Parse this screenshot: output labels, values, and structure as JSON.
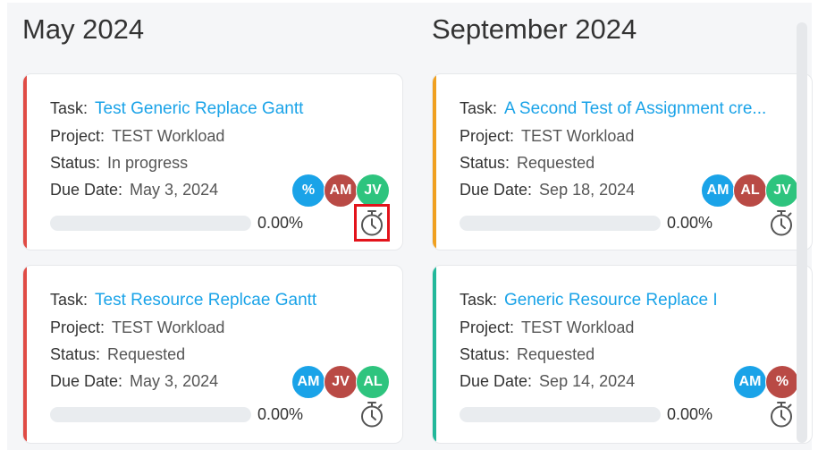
{
  "columns": [
    {
      "title": "May 2024",
      "cards": [
        {
          "accent": "#e04b45",
          "task_label": "Task:",
          "task": "Test Generic Replace Gantt",
          "project_label": "Project:",
          "project": "TEST Workload",
          "status_label": "Status:",
          "status": "In progress",
          "due_label": "Due Date:",
          "due": "May 3, 2024",
          "progress": 0.0,
          "progress_text": "0.00%",
          "avatars": [
            {
              "text": "%",
              "color": "#1aa3e8"
            },
            {
              "text": "AM",
              "color": "#b94a45"
            },
            {
              "text": "JV",
              "color": "#2ec47e"
            }
          ],
          "timer_highlight": true
        },
        {
          "accent": "#e04b45",
          "task_label": "Task:",
          "task": "Test Resource Replcae Gantt",
          "project_label": "Project:",
          "project": "TEST Workload",
          "status_label": "Status:",
          "status": "Requested",
          "due_label": "Due Date:",
          "due": "May 3, 2024",
          "progress": 0.0,
          "progress_text": "0.00%",
          "avatars": [
            {
              "text": "AM",
              "color": "#1aa3e8"
            },
            {
              "text": "JV",
              "color": "#b94a45"
            },
            {
              "text": "AL",
              "color": "#2ec47e"
            }
          ],
          "timer_highlight": false
        }
      ]
    },
    {
      "title": "September 2024",
      "cards": [
        {
          "accent": "#f0a020",
          "task_label": "Task:",
          "task": "A Second Test of Assignment cre...",
          "project_label": "Project:",
          "project": "TEST Workload",
          "status_label": "Status:",
          "status": "Requested",
          "due_label": "Due Date:",
          "due": "Sep 18, 2024",
          "progress": 0.0,
          "progress_text": "0.00%",
          "avatars": [
            {
              "text": "AM",
              "color": "#1aa3e8"
            },
            {
              "text": "AL",
              "color": "#b94a45"
            },
            {
              "text": "JV",
              "color": "#2ec47e"
            }
          ],
          "timer_highlight": false
        },
        {
          "accent": "#22b89a",
          "task_label": "Task:",
          "task": "Generic Resource Replace I",
          "project_label": "Project:",
          "project": "TEST Workload",
          "status_label": "Status:",
          "status": "Requested",
          "due_label": "Due Date:",
          "due": "Sep 14, 2024",
          "progress": 0.0,
          "progress_text": "0.00%",
          "avatars": [
            {
              "text": "AM",
              "color": "#1aa3e8"
            },
            {
              "text": "%",
              "color": "#b94a45"
            }
          ],
          "timer_highlight": false
        }
      ]
    }
  ],
  "icons": {
    "timer": "stopwatch-icon"
  }
}
